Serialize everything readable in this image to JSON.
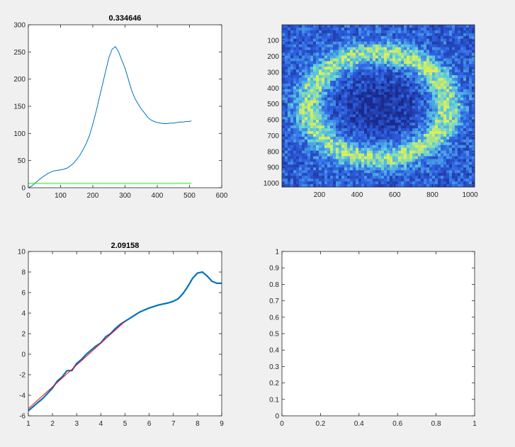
{
  "figure": {
    "background": "#f0f0f0"
  },
  "chart_data": [
    {
      "type": "line",
      "title": "0.334646",
      "xlim": [
        0,
        600
      ],
      "ylim": [
        0,
        300
      ],
      "xticks": [
        0,
        100,
        200,
        300,
        400,
        500,
        600
      ],
      "yticks": [
        0,
        50,
        100,
        150,
        200,
        250,
        300
      ],
      "grid": false,
      "series": [
        {
          "color": "#0072bd",
          "x": [
            0,
            10,
            20,
            30,
            40,
            50,
            60,
            70,
            80,
            90,
            100,
            110,
            120,
            130,
            140,
            150,
            160,
            170,
            180,
            190,
            200,
            210,
            220,
            230,
            240,
            250,
            260,
            270,
            280,
            290,
            300,
            310,
            320,
            330,
            340,
            350,
            360,
            370,
            380,
            390,
            400,
            410,
            420,
            430,
            440,
            450,
            460,
            470,
            480,
            490,
            500,
            505
          ],
          "y": [
            0,
            3,
            8,
            13,
            18,
            22,
            26,
            29,
            31,
            32,
            33,
            34,
            36,
            40,
            45,
            52,
            60,
            70,
            82,
            97,
            117,
            140,
            165,
            190,
            215,
            240,
            255,
            260,
            250,
            235,
            220,
            200,
            180,
            165,
            155,
            145,
            138,
            130,
            125,
            122,
            120,
            119,
            118,
            118,
            119,
            119,
            120,
            121,
            121,
            122,
            122,
            123
          ]
        },
        {
          "color": "#00ff00",
          "x": [
            0,
            505
          ],
          "y": [
            8,
            8
          ]
        }
      ]
    },
    {
      "type": "heatmap",
      "title": "",
      "xlim": [
        1,
        1024
      ],
      "ylim": [
        1,
        1024
      ],
      "y_reversed": true,
      "xticks": [
        200,
        400,
        600,
        800,
        1000
      ],
      "yticks": [
        100,
        200,
        300,
        400,
        500,
        600,
        700,
        800,
        900,
        1000
      ],
      "center": [
        512,
        512
      ],
      "colors": {
        "dark": "#1a2a8c",
        "mid": "#2f64e6",
        "ring": "#5fd0e0",
        "hot": "#d8ef5a"
      }
    },
    {
      "type": "line",
      "title": "2.09158",
      "xlim": [
        1,
        9
      ],
      "ylim": [
        -6,
        10
      ],
      "xticks": [
        1,
        2,
        3,
        4,
        5,
        6,
        7,
        8,
        9
      ],
      "yticks": [
        -6,
        -4,
        -2,
        0,
        2,
        4,
        6,
        8,
        10
      ],
      "grid": false,
      "series": [
        {
          "color": "#0072bd",
          "x": [
            1.0,
            1.2,
            1.4,
            1.6,
            1.8,
            2.0,
            2.2,
            2.4,
            2.6,
            2.8,
            3.0,
            3.2,
            3.4,
            3.6,
            3.8,
            4.0,
            4.2,
            4.4,
            4.6,
            4.8,
            5.0,
            5.2,
            5.4,
            5.6,
            5.8,
            6.0,
            6.2,
            6.4,
            6.6,
            6.8,
            7.0,
            7.2,
            7.4,
            7.6,
            7.8,
            8.0,
            8.2,
            8.4,
            8.6,
            8.8,
            9.0
          ],
          "y": [
            -5.5,
            -5.1,
            -4.7,
            -4.3,
            -3.8,
            -3.3,
            -2.6,
            -2.2,
            -1.6,
            -1.6,
            -0.9,
            -0.5,
            0.0,
            0.4,
            0.8,
            1.1,
            1.7,
            2.0,
            2.5,
            2.9,
            3.2,
            3.5,
            3.8,
            4.1,
            4.3,
            4.5,
            4.65,
            4.8,
            4.9,
            5.0,
            5.15,
            5.4,
            5.9,
            6.6,
            7.4,
            7.9,
            8.0,
            7.6,
            7.1,
            6.9,
            6.9
          ]
        },
        {
          "color": "#ff0000",
          "x": [
            1,
            5
          ],
          "y": [
            -5.3,
            3.2
          ]
        }
      ]
    },
    {
      "type": "line",
      "title": "",
      "xlim": [
        0,
        1
      ],
      "ylim": [
        0,
        1
      ],
      "xticks": [
        0,
        0.2,
        0.4,
        0.6,
        0.8,
        1
      ],
      "yticks": [
        0,
        0.1,
        0.2,
        0.3,
        0.4,
        0.5,
        0.6,
        0.7,
        0.8,
        0.9,
        1
      ],
      "grid": false,
      "series": []
    }
  ]
}
